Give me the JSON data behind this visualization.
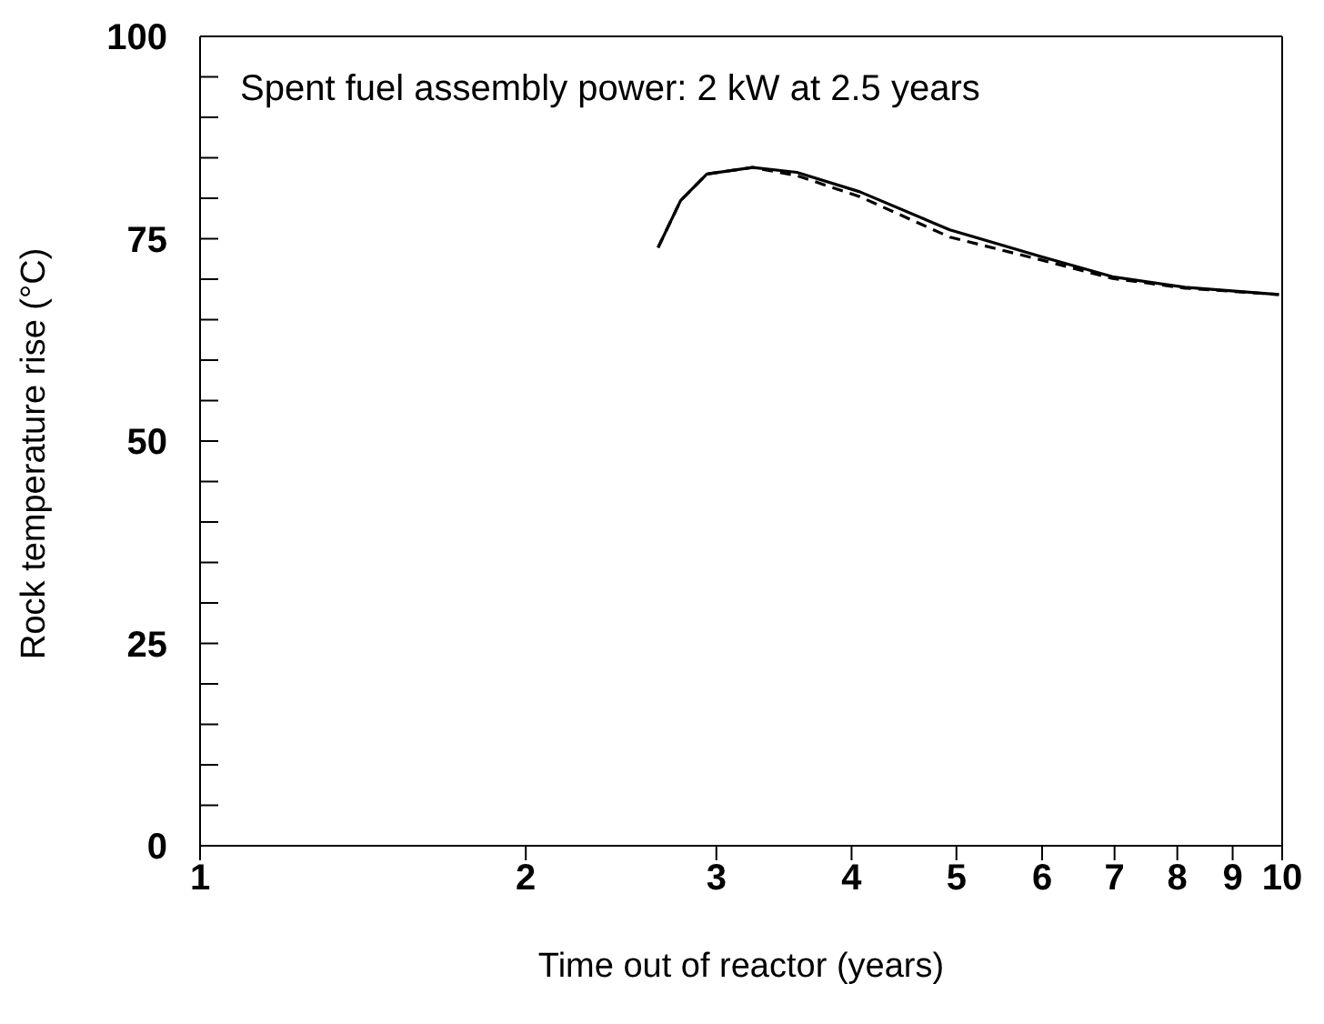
{
  "chart_data": {
    "type": "line",
    "xlabel": "Time out of reactor (years)",
    "ylabel": "Rock temperature rise (°C)",
    "annotations": [
      "Spent fuel assembly power: 2 kW at 2.5 years"
    ],
    "log": "x",
    "xlim": [
      1,
      10
    ],
    "xticks": [
      1,
      2,
      3,
      4,
      5,
      6,
      7,
      8,
      9,
      10
    ],
    "ylim": [
      0,
      100
    ],
    "yticks": [
      0,
      {
        "value": 5,
        "label": null
      },
      {
        "value": 10,
        "label": null
      },
      {
        "value": 15,
        "label": null
      },
      {
        "value": 20,
        "label": null
      },
      25,
      {
        "value": 30,
        "label": null
      },
      {
        "value": 35,
        "label": null
      },
      {
        "value": 40,
        "label": null
      },
      {
        "value": 45,
        "label": null
      },
      50,
      {
        "value": 55,
        "label": null
      },
      {
        "value": 60,
        "label": null
      },
      {
        "value": 65,
        "label": null
      },
      {
        "value": 70,
        "label": null
      },
      75,
      {
        "value": 80,
        "label": null
      },
      {
        "value": 85,
        "label": null
      },
      {
        "value": 90,
        "label": null
      },
      {
        "value": 95,
        "label": null
      },
      100
    ],
    "marker": "none",
    "series": [
      {
        "color": "#000000",
        "line_style": "solid",
        "x": [
          2.65,
          2.78,
          2.94,
          3.24,
          3.56,
          4.07,
          4.93,
          5.98,
          6.97,
          8.13,
          9.93
        ],
        "values": [
          73.9,
          79.7,
          83,
          83.8,
          83.2,
          80.8,
          76.1,
          72.8,
          70.3,
          69,
          68.1
        ]
      },
      {
        "color": "#000000",
        "line_style": "dashed",
        "x": [
          2.65,
          2.78,
          2.94,
          3.24,
          3.56,
          4.07,
          4.93,
          5.98,
          6.97,
          8.13,
          9.93
        ],
        "values": [
          73.9,
          79.7,
          83,
          83.8,
          82.8,
          80.2,
          75.2,
          72.4,
          70.1,
          68.9,
          68.1
        ]
      }
    ]
  }
}
